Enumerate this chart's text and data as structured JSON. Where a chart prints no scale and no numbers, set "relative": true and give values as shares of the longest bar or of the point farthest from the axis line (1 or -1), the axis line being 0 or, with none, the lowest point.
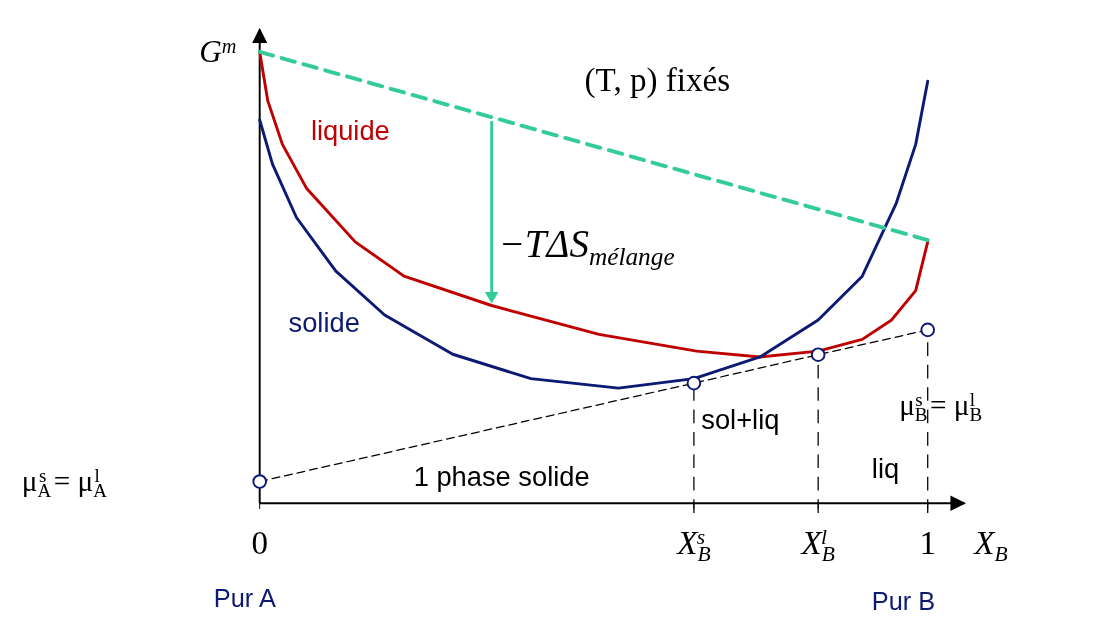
{
  "chart_data": {
    "type": "line",
    "title": "(T, p) fixés",
    "xlabel": "X$_{B}$",
    "ylabel": "G$^{m}$",
    "relative": true,
    "xlim": [
      0,
      1.055
    ],
    "xticks": [
      0,
      {
        "value": 0.65,
        "label": "X$_{B}$$^{s}$"
      },
      {
        "value": 0.836,
        "label": "X$_{B}$$^{l}$"
      },
      1
    ],
    "series": [
      {
        "name": "liquide",
        "color": "#c00000",
        "x": [
          0,
          0.012,
          0.034,
          0.07,
          0.143,
          0.216,
          0.347,
          0.508,
          0.654,
          0.749,
          0.836,
          0.902,
          0.946,
          0.982,
          1
        ],
        "values": [
          1,
          0.892,
          0.795,
          0.698,
          0.579,
          0.503,
          0.438,
          0.374,
          0.337,
          0.324,
          0.337,
          0.363,
          0.406,
          0.471,
          0.579
        ]
      },
      {
        "name": "solide",
        "color": "#0d1a73",
        "x": [
          0,
          0.019,
          0.055,
          0.114,
          0.187,
          0.289,
          0.406,
          0.537,
          0.65,
          0.749,
          0.836,
          0.902,
          0.953,
          0.982,
          1
        ],
        "values": [
          0.849,
          0.752,
          0.633,
          0.514,
          0.417,
          0.33,
          0.276,
          0.255,
          0.276,
          0.324,
          0.406,
          0.503,
          0.665,
          0.795,
          0.935
        ]
      },
      {
        "color": "#33cc99",
        "x": [
          0,
          1
        ],
        "values": [
          1,
          0.583
        ],
        "line_style": "dashed"
      },
      {
        "color": "#000000",
        "x": [
          0,
          0.65,
          0.836,
          1
        ],
        "values": [
          0.048,
          0.266,
          0.329,
          0.384
        ],
        "line_style": "dashed",
        "marker": "circle"
      }
    ],
    "ref_lines": [
      {
        "axis": "x",
        "value": 0.65,
        "color": "#000000",
        "line_style": "dashed"
      },
      {
        "axis": "x",
        "value": 0.836,
        "color": "#000000",
        "line_style": "dashed"
      },
      {
        "axis": "x",
        "value": 1,
        "color": "#000000",
        "line_style": "dashed"
      }
    ],
    "annotations": [
      "−TΔS$_{mélange}$",
      "sol+liq",
      "liq",
      "1 phase solide",
      "μ$_{A}$$^{s}$ = μ$_{A}$$^{l}$",
      "μ$_{B}$$^{s}$ = μ$_{B}$$^{l}$",
      "Pur A",
      "Pur B"
    ]
  }
}
